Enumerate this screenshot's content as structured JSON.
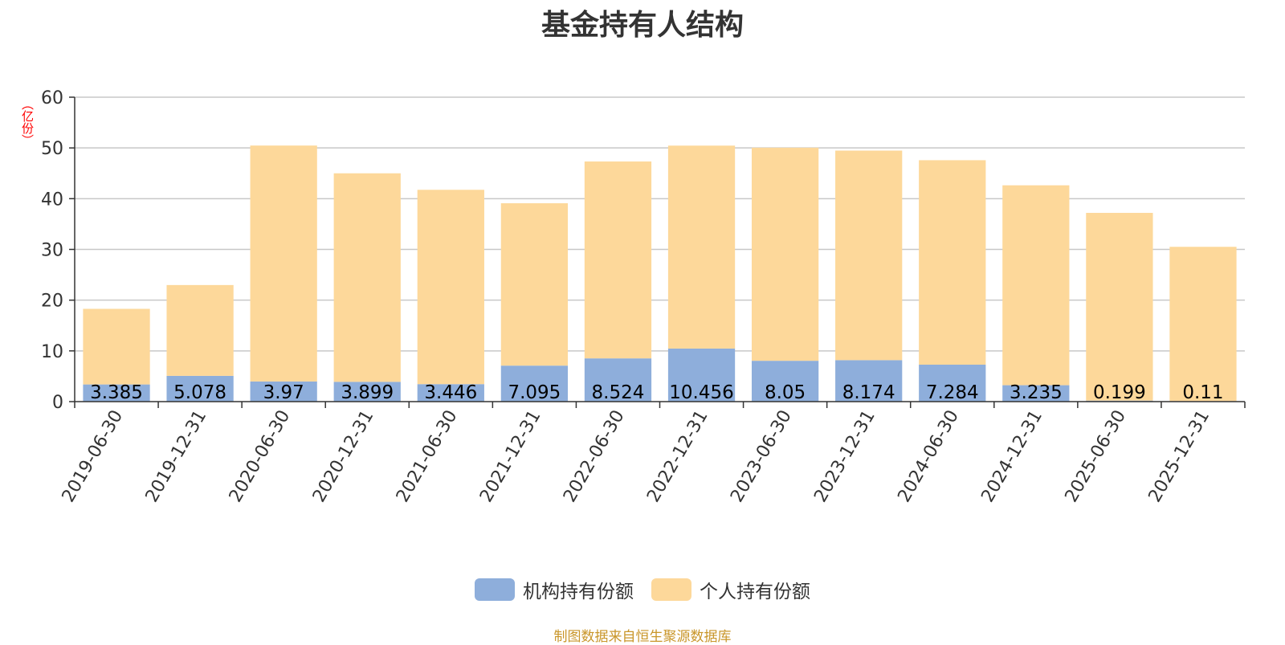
{
  "chart_data": {
    "type": "bar",
    "stacked": true,
    "title": "基金持有人结构",
    "unit_label": "（亿份）",
    "categories": [
      "2019-06-30",
      "2019-12-31",
      "2020-06-30",
      "2020-12-31",
      "2021-06-30",
      "2021-12-31",
      "2022-06-30",
      "2022-12-31",
      "2023-06-30",
      "2023-12-31",
      "2024-06-30",
      "2024-12-31",
      "2025-06-30",
      "2025-12-31"
    ],
    "series": [
      {
        "name": "机构持有份额",
        "color": "#8eaedb",
        "values": [
          3.385,
          5.078,
          3.97,
          3.899,
          3.446,
          7.095,
          8.524,
          10.456,
          8.05,
          8.174,
          7.284,
          3.235,
          0.199,
          0.11
        ],
        "labels": [
          "3.385",
          "5.078",
          "3.97",
          "3.899",
          "3.446",
          "7.095",
          "8.524",
          "10.456",
          "8.05",
          "8.174",
          "7.284",
          "3.235",
          "0.199",
          "0.11"
        ]
      },
      {
        "name": "个人持有份额",
        "color": "#fdd89a",
        "values": [
          14.9,
          17.9,
          46.5,
          41.1,
          38.3,
          32.0,
          38.8,
          40.0,
          42.0,
          41.3,
          40.3,
          39.4,
          37.0,
          30.4
        ]
      }
    ],
    "ylim": [
      0,
      60
    ],
    "yticks": [
      0,
      10,
      20,
      30,
      40,
      50,
      60
    ],
    "grid": true,
    "legend_position": "bottom"
  },
  "source_note": "制图数据来自恒生聚源数据库"
}
